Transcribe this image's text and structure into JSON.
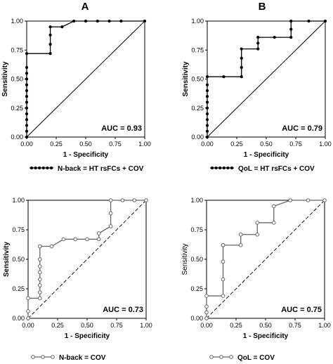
{
  "panel_letters": [
    "A",
    "B"
  ],
  "chart_data": [
    {
      "type": "line",
      "title": "",
      "xlabel": "1 - Specificity",
      "ylabel": "Sensitivity",
      "xlim": [
        0,
        1
      ],
      "ylim": [
        0,
        1
      ],
      "xticks": [
        "0.00",
        "0.25",
        "0.50",
        "0.75",
        "1.00"
      ],
      "yticks": [
        "0.00",
        "0.25",
        "0.50",
        "0.75",
        "1.00"
      ],
      "reference_line": "solid",
      "auc_label": "AUC = 0.93",
      "legend": "N-back = HT rsFCs + COV",
      "marker": "filled",
      "grid": false,
      "series": [
        {
          "name": "N-back = HT rsFCs + COV",
          "x": [
            0,
            0,
            0,
            0,
            0,
            0,
            0,
            0,
            0,
            0,
            0,
            0,
            0,
            0,
            0.2,
            0.2,
            0.2,
            0.2,
            0.3,
            0.4,
            0.5,
            0.6,
            0.7,
            0.8,
            1.0
          ],
          "y": [
            0,
            0.05,
            0.1,
            0.15,
            0.2,
            0.25,
            0.3,
            0.35,
            0.4,
            0.45,
            0.5,
            0.55,
            0.6,
            0.72,
            0.72,
            0.8,
            0.88,
            0.95,
            0.95,
            1.0,
            1.0,
            1.0,
            1.0,
            1.0,
            1.0
          ]
        }
      ]
    },
    {
      "type": "line",
      "title": "",
      "xlabel": "1 - Specificity",
      "ylabel": "Sensitivity",
      "xlim": [
        0,
        1
      ],
      "ylim": [
        0,
        1
      ],
      "xticks": [
        "0.00",
        "0.25",
        "0.50",
        "0.75",
        "1.00"
      ],
      "yticks": [
        "0.00",
        "0.25",
        "0.50",
        "0.75",
        "1.00"
      ],
      "reference_line": "solid",
      "auc_label": "AUC = 0.79",
      "legend": "QoL = HT rsFCs + COV",
      "marker": "filled",
      "grid": false,
      "series": [
        {
          "name": "QoL = HT rsFCs + COV",
          "x": [
            0,
            0,
            0,
            0,
            0,
            0,
            0,
            0,
            0,
            0,
            0,
            0.14,
            0.29,
            0.29,
            0.29,
            0.29,
            0.43,
            0.43,
            0.43,
            0.57,
            0.71,
            0.71,
            0.71,
            0.86,
            1.0
          ],
          "y": [
            0,
            0.05,
            0.1,
            0.15,
            0.2,
            0.25,
            0.3,
            0.35,
            0.4,
            0.45,
            0.52,
            0.52,
            0.52,
            0.6,
            0.68,
            0.76,
            0.76,
            0.81,
            0.86,
            0.86,
            0.86,
            0.93,
            1.0,
            1.0,
            1.0
          ]
        }
      ]
    },
    {
      "type": "line",
      "title": "",
      "xlabel": "1 - Specificity",
      "ylabel": "Sensitivity",
      "xlim": [
        0,
        1
      ],
      "ylim": [
        0,
        1
      ],
      "xticks": [
        "0.00",
        "0.25",
        "0.50",
        "0.75",
        "1.00"
      ],
      "yticks": [
        "0.00",
        "0.25",
        "0.50",
        "0.75",
        "1.00"
      ],
      "reference_line": "dashed",
      "auc_label": "AUC = 0.73",
      "legend": "N-back = COV",
      "marker": "open",
      "grid": false,
      "series": [
        {
          "name": "N-back = COV",
          "x": [
            0,
            0,
            0,
            0.1,
            0.1,
            0.1,
            0.1,
            0.1,
            0.1,
            0.1,
            0.1,
            0.2,
            0.3,
            0.4,
            0.5,
            0.6,
            0.6,
            0.7,
            0.7,
            0.7,
            0.8,
            0.9,
            1.0
          ],
          "y": [
            0,
            0.06,
            0.17,
            0.17,
            0.22,
            0.28,
            0.33,
            0.39,
            0.44,
            0.5,
            0.61,
            0.61,
            0.67,
            0.67,
            0.67,
            0.67,
            0.72,
            0.78,
            0.89,
            1.0,
            1.0,
            1.0,
            1.0
          ]
        }
      ]
    },
    {
      "type": "line",
      "title": "",
      "xlabel": "1 - Specificity",
      "ylabel": "Sensitivity",
      "xlim": [
        0,
        1
      ],
      "ylim": [
        0,
        1
      ],
      "xticks": [
        "0.00",
        "0.25",
        "0.50",
        "0.75",
        "1.00"
      ],
      "yticks": [
        "0.00",
        "0.25",
        "0.50",
        "0.75",
        "1.00"
      ],
      "reference_line": "dashed",
      "auc_label": "AUC = 0.75",
      "legend": "QoL = COV",
      "marker": "open",
      "grid": false,
      "series": [
        {
          "name": "QoL = COV",
          "x": [
            0,
            0,
            0,
            0,
            0.14,
            0.14,
            0.14,
            0.14,
            0.14,
            0.29,
            0.29,
            0.43,
            0.43,
            0.57,
            0.57,
            0.71,
            0.86,
            1.0
          ],
          "y": [
            0,
            0.05,
            0.1,
            0.19,
            0.19,
            0.33,
            0.48,
            0.62,
            0.62,
            0.62,
            0.71,
            0.71,
            0.81,
            0.81,
            0.95,
            1.0,
            1.0,
            1.0
          ]
        }
      ]
    }
  ]
}
